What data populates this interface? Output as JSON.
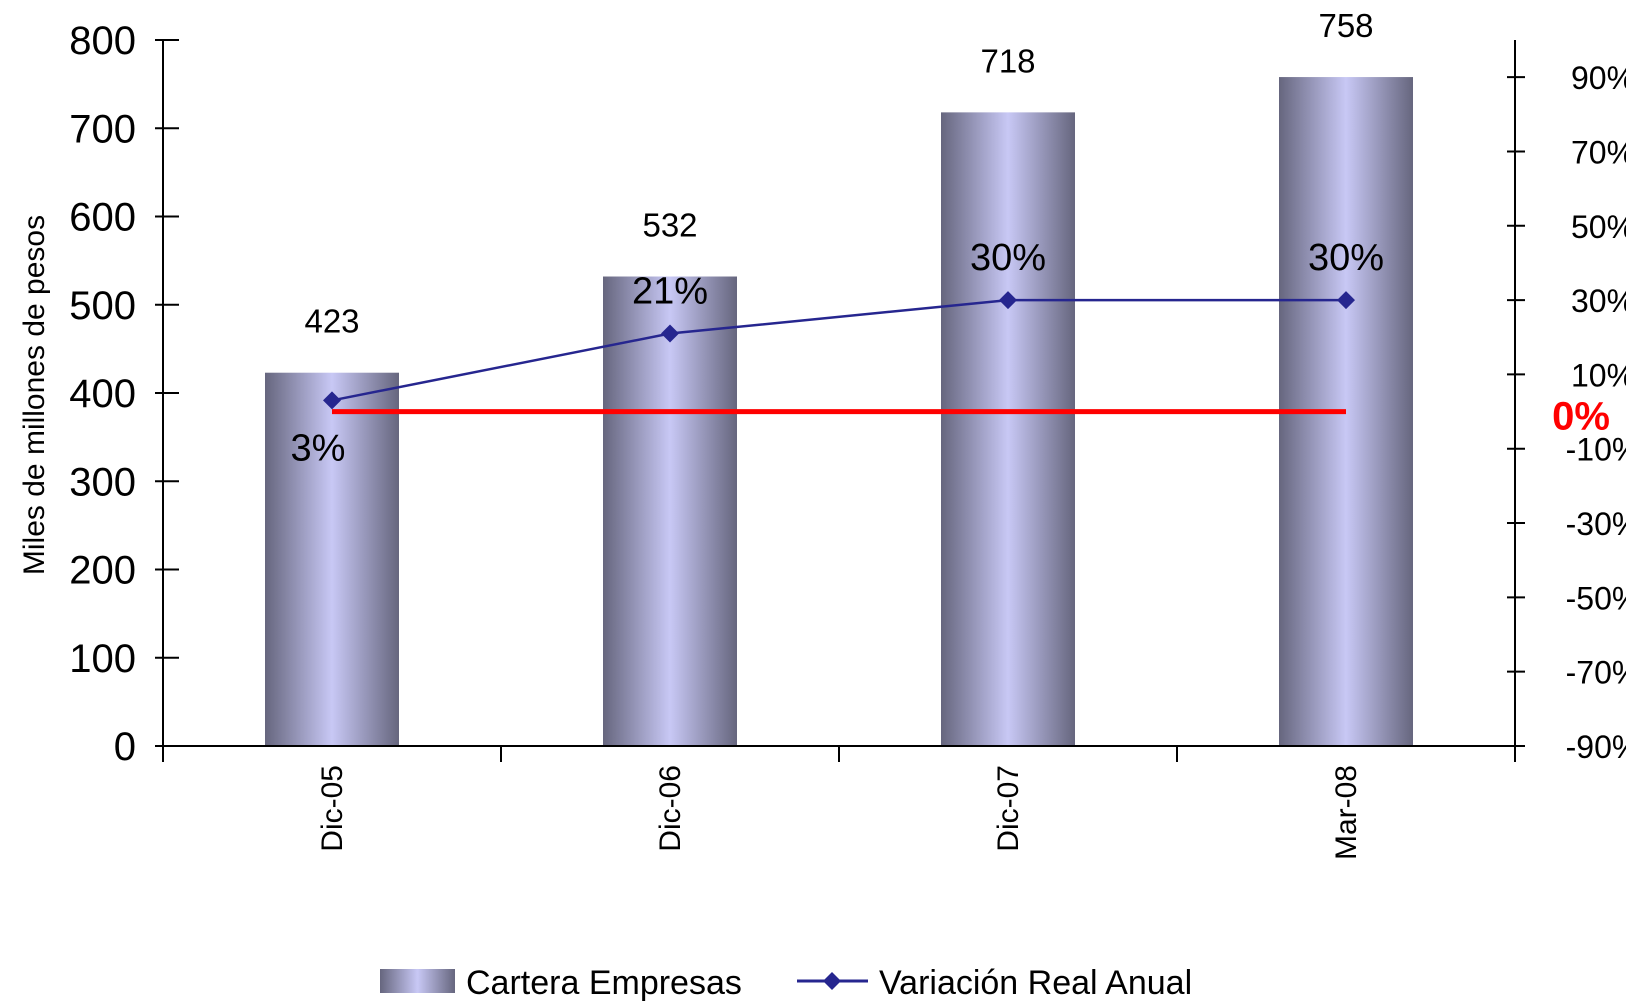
{
  "chart_data": {
    "type": "bar",
    "categories": [
      "Dic-05",
      "Dic-06",
      "Dic-07",
      "Mar-08"
    ],
    "ylabel": "Miles de millones de pesos",
    "ylim": [
      0,
      800
    ],
    "yticks": [
      "0",
      "100",
      "200",
      "300",
      "400",
      "500",
      "600",
      "700",
      "800"
    ],
    "y2lim": [
      -90,
      100
    ],
    "y2ticks": [
      "-90%",
      "-70%",
      "-50%",
      "-30%",
      "-10%",
      "10%",
      "30%",
      "50%",
      "70%",
      "90%"
    ],
    "series": [
      {
        "name": "Cartera Empresas",
        "type": "bar",
        "axis": "left",
        "values": [
          423,
          532,
          718,
          758
        ],
        "labels": [
          "423",
          "532",
          "718",
          "758"
        ],
        "color": "#c8c8f5",
        "edge_color": "#66667e"
      },
      {
        "name": "Variación Real Anual",
        "type": "line",
        "axis": "right",
        "values": [
          3,
          21,
          30,
          30
        ],
        "labels": [
          "3%",
          "21%",
          "30%",
          "30%"
        ],
        "color": "#26268f"
      }
    ],
    "reference_line": {
      "value": 0,
      "label": "0%",
      "color": "#ff0000"
    },
    "grid": false,
    "legend_position": "bottom"
  }
}
